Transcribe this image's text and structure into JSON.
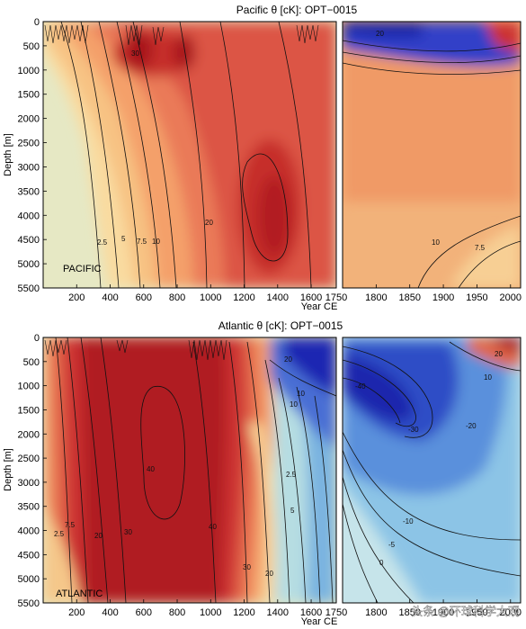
{
  "chart_data": [
    {
      "type": "heatmap",
      "title": "Pacific θ [cK]: OPT−0015",
      "inner_label": "PACIFIC",
      "xlabel": "Year CE",
      "ylabel": "Depth [m]",
      "left_panel_xlim": [
        0,
        1750
      ],
      "right_panel_xlim": [
        1750,
        2015
      ],
      "ylim": [
        5500,
        0
      ],
      "left_xticks": [
        "200",
        "400",
        "600",
        "800",
        "1000",
        "1200",
        "1400",
        "1600",
        "1750"
      ],
      "right_xticks": [
        "1800",
        "1850",
        "1900",
        "1950",
        "2000"
      ],
      "yticks": [
        "0",
        "500",
        "1000",
        "1500",
        "2000",
        "2500",
        "3000",
        "3500",
        "4000",
        "4500",
        "5000",
        "5500"
      ],
      "contour_labels": [
        "2.5",
        "5",
        "7.5",
        "10",
        "20",
        "30",
        "20",
        "10",
        "7.5"
      ],
      "colormap": {
        "negative": "#0a1fb0",
        "zero": "#e8eccc",
        "positive": "#b0141c"
      },
      "samples": [
        {
          "year": 100,
          "depth": 3000,
          "value": 0
        },
        {
          "year": 400,
          "depth": 3000,
          "value": 6
        },
        {
          "year": 700,
          "depth": 800,
          "value": 30
        },
        {
          "year": 1000,
          "depth": 3000,
          "value": 20
        },
        {
          "year": 1350,
          "depth": 4000,
          "value": 26
        },
        {
          "year": 1850,
          "depth": 2500,
          "value": 12
        },
        {
          "year": 1980,
          "depth": 5000,
          "value": 6
        },
        {
          "year": 1800,
          "depth": 200,
          "value": -25
        }
      ]
    },
    {
      "type": "heatmap",
      "title": "Atlantic θ [cK]: OPT−0015",
      "inner_label": "ATLANTIC",
      "xlabel": "Year CE",
      "ylabel": "Depth [m]",
      "left_panel_xlim": [
        0,
        1750
      ],
      "right_panel_xlim": [
        1750,
        2015
      ],
      "ylim": [
        5500,
        0
      ],
      "left_xticks": [
        "200",
        "400",
        "600",
        "800",
        "1000",
        "1200",
        "1400",
        "1600",
        "1750"
      ],
      "right_xticks": [
        "1800",
        "1850",
        "1900",
        "1950",
        "2000"
      ],
      "yticks": [
        "0",
        "500",
        "1000",
        "1500",
        "2000",
        "2500",
        "3000",
        "3500",
        "4000",
        "4500",
        "5000",
        "5500"
      ],
      "contour_labels": [
        "2.5",
        "7.5",
        "20",
        "30",
        "40",
        "40",
        "30",
        "20",
        "10",
        "5",
        "2.5",
        "20",
        "10",
        "-10",
        "-20",
        "-30",
        "-40",
        "-5",
        "0",
        "10",
        "20"
      ],
      "colormap": {
        "negative": "#0a1fb0",
        "zero": "#e8eccc",
        "positive": "#b0141c"
      },
      "samples": [
        {
          "year": 100,
          "depth": 4000,
          "value": 2
        },
        {
          "year": 750,
          "depth": 2500,
          "value": 45
        },
        {
          "year": 1150,
          "depth": 3000,
          "value": 30
        },
        {
          "year": 1500,
          "depth": 3500,
          "value": 2
        },
        {
          "year": 1600,
          "depth": 700,
          "value": -35
        },
        {
          "year": 1830,
          "depth": 1500,
          "value": -38
        },
        {
          "year": 1900,
          "depth": 4000,
          "value": -12
        },
        {
          "year": 2000,
          "depth": 300,
          "value": 15
        }
      ]
    }
  ],
  "watermark": "头条 @环球科学大观"
}
